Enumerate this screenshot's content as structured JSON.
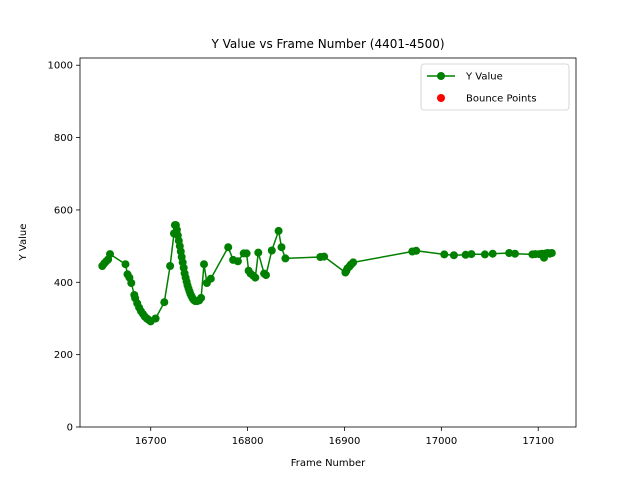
{
  "chart_data": {
    "type": "line",
    "title": "Y Value vs Frame Number (4401-4500)",
    "xlabel": "Frame Number",
    "ylabel": "Y Value",
    "xlim": [
      16627,
      17139
    ],
    "ylim": [
      0,
      1020
    ],
    "xticks": [
      16700,
      16800,
      16900,
      17000,
      17100
    ],
    "yticks": [
      0,
      200,
      400,
      600,
      800,
      1000
    ],
    "grid": false,
    "legend_position": "top-right",
    "series": [
      {
        "name": "Y Value",
        "color": "#008000",
        "marker": "circle",
        "x": [
          16650,
          16652,
          16654,
          16656,
          16658,
          16674,
          16676,
          16678,
          16680,
          16683,
          16684,
          16686,
          16688,
          16690,
          16692,
          16694,
          16696,
          16698,
          16700,
          16705,
          16714,
          16720,
          16724,
          16725,
          16726,
          16727,
          16728,
          16729,
          16730,
          16731,
          16732,
          16733,
          16734,
          16735,
          16736,
          16737,
          16738,
          16739,
          16740,
          16741,
          16742,
          16743,
          16744,
          16745,
          16746,
          16748,
          16750,
          16752,
          16755,
          16758,
          16762,
          16780,
          16785,
          16790,
          16796,
          16799,
          16801,
          16803,
          16806,
          16808,
          16811,
          16817,
          16819,
          16825,
          16832,
          16835,
          16839,
          16875,
          16879,
          16901,
          16902,
          16903,
          16905,
          16906,
          16907,
          16909,
          16970,
          16974,
          17003,
          17013,
          17025,
          17031,
          17045,
          17053,
          17070,
          17076,
          17094,
          17097,
          17101,
          17104,
          17106,
          17108,
          17110,
          17112,
          17114
        ],
        "y": [
          445,
          452,
          458,
          463,
          478,
          450,
          422,
          413,
          398,
          365,
          356,
          342,
          330,
          320,
          312,
          305,
          300,
          296,
          292,
          300,
          345,
          445,
          535,
          558,
          558,
          545,
          530,
          515,
          500,
          485,
          470,
          455,
          440,
          425,
          413,
          402,
          392,
          383,
          375,
          368,
          362,
          357,
          353,
          350,
          348,
          348,
          350,
          357,
          450,
          398,
          410,
          497,
          462,
          458,
          480,
          480,
          432,
          424,
          418,
          413,
          482,
          424,
          420,
          488,
          542,
          497,
          466,
          470,
          471,
          427,
          432,
          438,
          443,
          447,
          450,
          455,
          485,
          487,
          477,
          475,
          476,
          478,
          477,
          479,
          481,
          479,
          477,
          478,
          478,
          479,
          468,
          480,
          481,
          479,
          481
        ]
      }
    ],
    "legend": [
      {
        "name": "Y Value",
        "color": "#008000",
        "marker": "line-circle"
      },
      {
        "name": "Bounce Points",
        "color": "#ff0000",
        "marker": "circle"
      }
    ]
  }
}
